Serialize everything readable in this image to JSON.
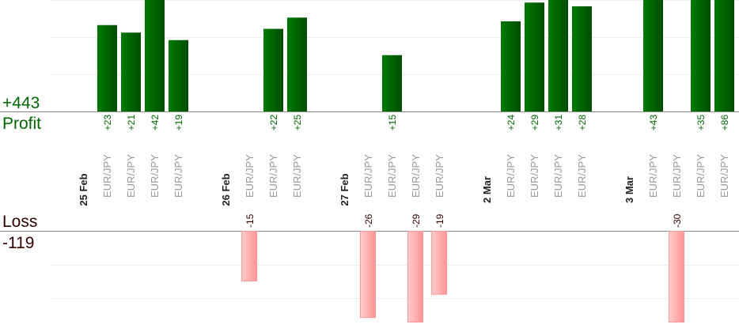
{
  "summary": {
    "profit_total": "+443",
    "profit_label": "Profit",
    "loss_label": "Loss",
    "loss_total": "-119"
  },
  "colors": {
    "profit": "#006600",
    "loss": "#ff9999",
    "loss_text": "#330000"
  },
  "chart_data": {
    "type": "bar",
    "columns": [
      {
        "kind": "date",
        "label": "25 Feb"
      },
      {
        "kind": "trade",
        "label": "EUR/JPY",
        "value": 23
      },
      {
        "kind": "trade",
        "label": "EUR/JPY",
        "value": 21
      },
      {
        "kind": "trade",
        "label": "EUR/JPY",
        "value": 42
      },
      {
        "kind": "trade",
        "label": "EUR/JPY",
        "value": 19
      },
      {
        "kind": "gap"
      },
      {
        "kind": "date",
        "label": "26 Feb"
      },
      {
        "kind": "trade",
        "label": "EUR/JPY",
        "value": -15
      },
      {
        "kind": "trade",
        "label": "EUR/JPY",
        "value": 22
      },
      {
        "kind": "trade",
        "label": "EUR/JPY",
        "value": 25
      },
      {
        "kind": "gap"
      },
      {
        "kind": "date",
        "label": "27 Feb"
      },
      {
        "kind": "trade",
        "label": "EUR/JPY",
        "value": -26
      },
      {
        "kind": "trade",
        "label": "EUR/JPY",
        "value": 15
      },
      {
        "kind": "trade",
        "label": "EUR/JPY",
        "value": -29
      },
      {
        "kind": "trade",
        "label": "EUR/JPY",
        "value": -19
      },
      {
        "kind": "gap"
      },
      {
        "kind": "date",
        "label": "2 Mar"
      },
      {
        "kind": "trade",
        "label": "EUR/JPY",
        "value": 24
      },
      {
        "kind": "trade",
        "label": "EUR/JPY",
        "value": 29
      },
      {
        "kind": "trade",
        "label": "EUR/JPY",
        "value": 31
      },
      {
        "kind": "trade",
        "label": "EUR/JPY",
        "value": 28
      },
      {
        "kind": "gap"
      },
      {
        "kind": "date",
        "label": "3 Mar"
      },
      {
        "kind": "trade",
        "label": "EUR/JPY",
        "value": 43
      },
      {
        "kind": "trade",
        "label": "EUR/JPY",
        "value": -30
      },
      {
        "kind": "trade",
        "label": "EUR/JPY",
        "value": 35
      },
      {
        "kind": "trade",
        "label": "EUR/JPY",
        "value": 86
      }
    ]
  }
}
